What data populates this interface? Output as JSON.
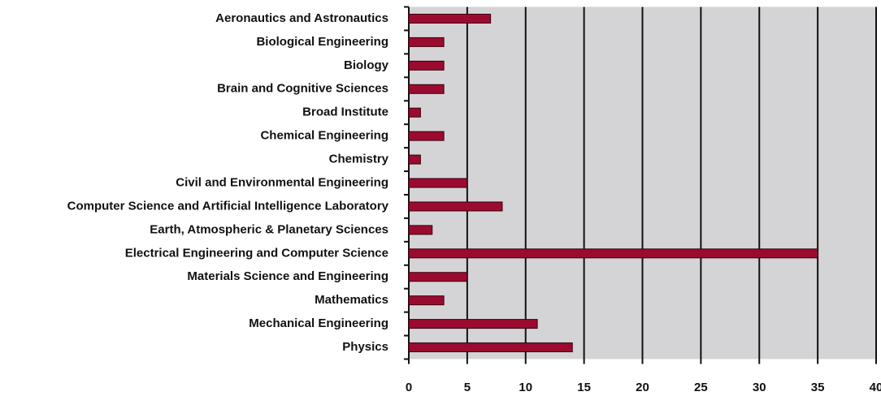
{
  "chart_data": {
    "type": "bar",
    "orientation": "horizontal",
    "categories": [
      "Aeronautics and Astronautics",
      "Biological Engineering",
      "Biology",
      "Brain and Cognitive Sciences",
      "Broad Institute",
      "Chemical Engineering",
      "Chemistry",
      "Civil and Environmental Engineering",
      "Computer Science and Artificial Intelligence Laboratory",
      "Earth, Atmospheric & Planetary Sciences",
      "Electrical Engineering and Computer Science",
      "Materials Science and Engineering",
      "Mathematics",
      "Mechanical Engineering",
      "Physics"
    ],
    "values": [
      7,
      3,
      3,
      3,
      1,
      3,
      1,
      5,
      8,
      2,
      35,
      5,
      3,
      11,
      14
    ],
    "color": "#9b0b2f",
    "xlim": [
      0,
      40
    ],
    "xticks": [
      0,
      5,
      10,
      15,
      20,
      25,
      30,
      35,
      40
    ],
    "grid": true
  }
}
